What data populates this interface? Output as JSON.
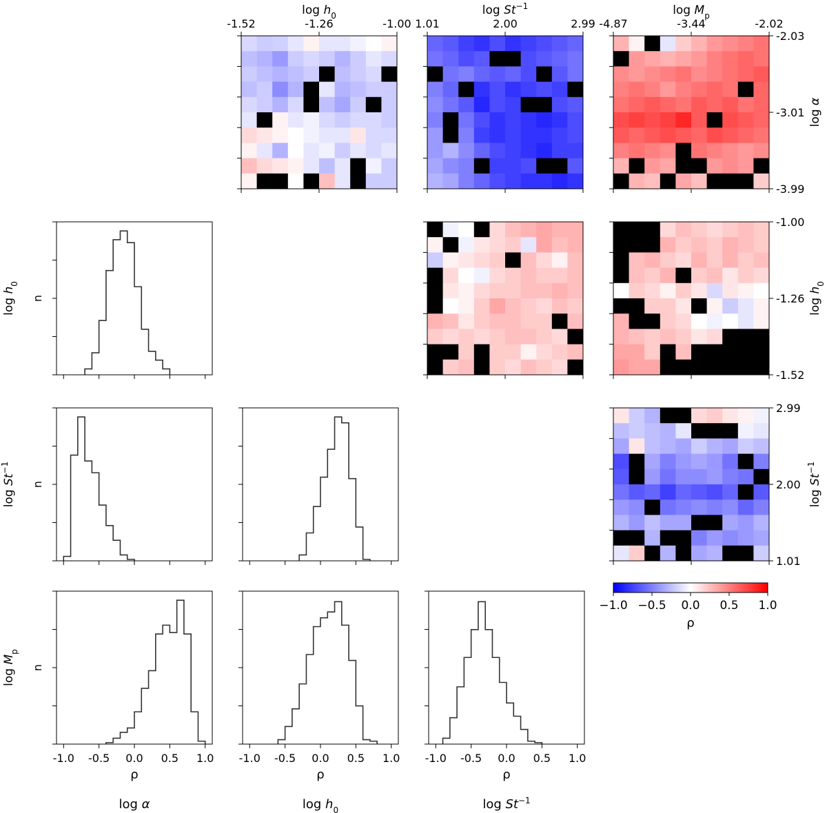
{
  "chart_data": {
    "type": "corner-plot",
    "description_labels": {
      "variables": [
        "log α",
        "log h0",
        "log St-1",
        "log Mp"
      ]
    },
    "heatmaps": [
      {
        "name": "h0-vs-alpha",
        "x_label": {
          "main": "log ",
          "ital": "h",
          "sub": "0",
          "sup": ""
        },
        "y_label": {
          "main": "log ",
          "ital": "α",
          "sub": "",
          "sup": ""
        },
        "x_ticks": [
          "-1.52",
          "-1.26",
          "-1.00"
        ],
        "y_ticks": [
          "-2.03",
          "-3.01",
          "-3.99"
        ],
        "grid": [
          [
            -0.15,
            -0.2,
            -0.18,
            -0.1,
            0.05,
            -0.1,
            -0.1,
            -0.05,
            0.0,
            0.05
          ],
          [
            -0.25,
            -0.3,
            -0.4,
            -0.2,
            -0.15,
            -0.2,
            -0.3,
            -0.2,
            -0.1,
            -0.15
          ],
          [
            -0.2,
            -0.25,
            -0.3,
            -0.25,
            -0.2,
            null,
            -0.25,
            -0.2,
            -0.15,
            null
          ],
          [
            -0.25,
            -0.2,
            -0.45,
            -0.3,
            null,
            -0.1,
            -0.3,
            -0.25,
            -0.2,
            -0.2
          ],
          [
            -0.15,
            -0.2,
            -0.3,
            -0.15,
            null,
            -0.25,
            -0.35,
            -0.2,
            null,
            -0.2
          ],
          [
            -0.1,
            null,
            0.05,
            -0.1,
            -0.05,
            -0.15,
            -0.2,
            -0.15,
            -0.15,
            -0.2
          ],
          [
            0.15,
            0.1,
            0.05,
            0.0,
            -0.05,
            -0.1,
            -0.1,
            0.1,
            -0.15,
            -0.15
          ],
          [
            0.05,
            -0.1,
            -0.3,
            0.0,
            -0.1,
            -0.05,
            -0.2,
            -0.1,
            -0.15,
            -0.1
          ],
          [
            0.25,
            0.15,
            0.1,
            0.05,
            -0.1,
            -0.25,
            -0.1,
            null,
            -0.05,
            -0.2
          ],
          [
            0.05,
            null,
            null,
            0.0,
            null,
            0.25,
            -0.1,
            null,
            -0.2,
            -0.2
          ]
        ]
      },
      {
        "name": "st-vs-alpha",
        "x_label": {
          "main": "log ",
          "ital": "St",
          "sub": "",
          "sup": "−1"
        },
        "y_label": {
          "main": "",
          "ital": "",
          "sub": "",
          "sup": ""
        },
        "x_ticks": [
          "1.01",
          "2.00",
          "2.99"
        ],
        "y_ticks": [],
        "grid": [
          [
            -0.6,
            -0.65,
            -0.75,
            -0.8,
            -0.7,
            -0.8,
            -0.75,
            -0.7,
            -0.65,
            -0.6
          ],
          [
            -0.55,
            -0.6,
            -0.7,
            -0.65,
            null,
            null,
            -0.7,
            -0.65,
            -0.6,
            -0.55
          ],
          [
            null,
            -0.55,
            -0.5,
            -0.6,
            -0.65,
            -0.6,
            -0.7,
            null,
            -0.65,
            -0.55
          ],
          [
            -0.5,
            -0.6,
            null,
            -0.8,
            -0.7,
            -0.8,
            -0.75,
            -0.7,
            -0.75,
            null
          ],
          [
            -0.45,
            -0.55,
            -0.65,
            -0.85,
            -0.7,
            -0.75,
            null,
            null,
            -0.7,
            -0.65
          ],
          [
            -0.5,
            null,
            -0.55,
            -0.7,
            -0.8,
            -0.75,
            -0.8,
            -0.85,
            -0.8,
            -0.7
          ],
          [
            -0.4,
            null,
            -0.5,
            -0.75,
            -0.8,
            -0.75,
            -0.8,
            -0.8,
            -0.75,
            -0.7
          ],
          [
            -0.4,
            -0.3,
            -0.45,
            -0.6,
            -0.7,
            -0.75,
            -0.8,
            -0.85,
            -0.75,
            -0.75
          ],
          [
            -0.35,
            -0.45,
            -0.5,
            null,
            -0.75,
            -0.75,
            -0.7,
            null,
            null,
            -0.65
          ],
          [
            -0.3,
            -0.35,
            -0.5,
            -0.6,
            -0.7,
            -0.75,
            -0.8,
            -0.8,
            -0.85,
            -0.8
          ]
        ]
      },
      {
        "name": "mp-vs-alpha",
        "x_label": {
          "main": "log ",
          "ital": "M",
          "sub": "p",
          "sup": ""
        },
        "y_label": {
          "main": "log ",
          "ital": "α",
          "sub": "",
          "sup": ""
        },
        "x_ticks": [
          "-4.87",
          "-3.44",
          "-2.02"
        ],
        "y_ticks": [
          "-2.03",
          "-3.01",
          "-3.99"
        ],
        "grid": [
          [
            0.3,
            0.05,
            null,
            -0.1,
            0.2,
            0.3,
            0.4,
            0.45,
            0.5,
            0.55
          ],
          [
            null,
            0.4,
            0.35,
            0.3,
            0.35,
            0.4,
            0.5,
            0.55,
            0.6,
            0.55
          ],
          [
            0.45,
            0.4,
            0.45,
            0.5,
            0.55,
            0.45,
            0.5,
            0.55,
            0.6,
            0.65
          ],
          [
            0.5,
            0.55,
            0.5,
            0.4,
            0.5,
            0.55,
            0.6,
            0.55,
            null,
            0.6
          ],
          [
            0.55,
            0.6,
            0.65,
            0.6,
            0.55,
            0.65,
            0.6,
            0.65,
            0.55,
            0.6
          ],
          [
            0.7,
            0.75,
            0.7,
            0.75,
            0.85,
            0.65,
            null,
            0.7,
            0.65,
            0.6
          ],
          [
            0.65,
            0.6,
            0.65,
            0.7,
            0.65,
            0.6,
            0.7,
            0.65,
            0.6,
            0.55
          ],
          [
            0.5,
            0.55,
            0.5,
            0.45,
            null,
            0.55,
            0.5,
            0.45,
            0.4,
            0.45
          ],
          [
            0.3,
            null,
            0.4,
            0.35,
            null,
            null,
            0.4,
            0.45,
            0.4,
            null
          ],
          [
            null,
            0.3,
            0.25,
            null,
            0.35,
            0.25,
            null,
            null,
            null,
            0.2
          ]
        ]
      },
      {
        "name": "st-vs-h0",
        "x_label": {
          "main": "",
          "ital": "",
          "sub": "",
          "sup": ""
        },
        "y_label": {
          "main": "",
          "ital": "",
          "sub": "",
          "sup": ""
        },
        "x_ticks": [],
        "y_ticks": [],
        "grid": [
          [
            null,
            -0.05,
            0.0,
            null,
            0.15,
            0.25,
            0.3,
            0.35,
            0.3,
            0.3
          ],
          [
            0.05,
            null,
            -0.05,
            0.1,
            0.15,
            0.2,
            -0.1,
            0.35,
            0.25,
            0.3
          ],
          [
            -0.2,
            0.05,
            0.1,
            0.15,
            0.2,
            null,
            0.25,
            0.15,
            0.05,
            0.25
          ],
          [
            null,
            0.15,
            0.0,
            -0.05,
            0.15,
            0.2,
            0.25,
            0.2,
            0.2,
            0.25
          ],
          [
            null,
            0.1,
            0.05,
            0.15,
            0.2,
            0.2,
            0.25,
            0.25,
            0.3,
            0.25
          ],
          [
            null,
            0.0,
            0.05,
            0.2,
            0.35,
            0.25,
            0.2,
            0.15,
            0.25,
            0.2
          ],
          [
            0.3,
            0.25,
            0.1,
            0.2,
            0.25,
            0.25,
            0.2,
            0.2,
            null,
            0.25
          ],
          [
            0.2,
            0.15,
            0.2,
            0.15,
            0.2,
            0.25,
            0.25,
            0.2,
            0.15,
            null
          ],
          [
            null,
            null,
            0.2,
            null,
            0.2,
            0.2,
            0.05,
            0.15,
            0.2,
            0.25
          ],
          [
            null,
            0.2,
            0.25,
            null,
            0.2,
            0.15,
            0.25,
            0.2,
            0.15,
            null
          ]
        ]
      },
      {
        "name": "mp-vs-h0",
        "x_label": {
          "main": "",
          "ital": "",
          "sub": "",
          "sup": ""
        },
        "y_label": {
          "main": "log ",
          "ital": "h",
          "sub": "0",
          "sup": ""
        },
        "x_ticks": [],
        "y_ticks": [
          "-1.00",
          "-1.26",
          "-1.52"
        ],
        "grid": [
          [
            null,
            null,
            null,
            0.15,
            0.25,
            0.2,
            0.15,
            0.2,
            0.25,
            0.2
          ],
          [
            null,
            null,
            null,
            0.3,
            0.2,
            0.25,
            0.2,
            0.3,
            0.25,
            0.2
          ],
          [
            null,
            0.25,
            0.3,
            0.2,
            0.15,
            0.3,
            0.2,
            0.3,
            0.2,
            0.25
          ],
          [
            null,
            0.25,
            0.2,
            0.3,
            null,
            0.2,
            0.25,
            0.1,
            0.2,
            0.15
          ],
          [
            0.0,
            0.2,
            0.15,
            0.05,
            0.2,
            0.1,
            -0.15,
            0.1,
            0.05,
            0.0
          ],
          [
            null,
            null,
            0.2,
            0.2,
            0.1,
            null,
            0.05,
            -0.2,
            -0.1,
            0.05
          ],
          [
            0.3,
            null,
            null,
            0.2,
            0.15,
            0.0,
            -0.05,
            0.0,
            -0.1,
            0.05
          ],
          [
            0.3,
            0.25,
            0.2,
            0.25,
            0.2,
            0.1,
            0.15,
            null,
            null,
            null
          ],
          [
            0.35,
            0.35,
            0.2,
            null,
            0.25,
            null,
            null,
            null,
            null,
            null
          ],
          [
            0.4,
            0.35,
            0.35,
            null,
            null,
            null,
            null,
            null,
            null,
            null
          ]
        ]
      },
      {
        "name": "mp-vs-st",
        "x_label": {
          "main": "",
          "ital": "",
          "sub": "",
          "sup": ""
        },
        "y_label": {
          "main": "log ",
          "ital": "St",
          "sub": "",
          "sup": "−1"
        },
        "x_ticks": [],
        "y_ticks": [
          "2.99",
          "2.00",
          "1.01"
        ],
        "grid": [
          [
            0.1,
            -0.2,
            -0.3,
            null,
            null,
            0.15,
            0.2,
            0.1,
            0.05,
            -0.05
          ],
          [
            -0.25,
            -0.2,
            -0.25,
            -0.3,
            -0.1,
            null,
            null,
            null,
            -0.05,
            -0.1
          ],
          [
            -0.35,
            0.1,
            -0.25,
            -0.3,
            -0.35,
            -0.2,
            -0.3,
            -0.35,
            -0.2,
            -0.25
          ],
          [
            -0.7,
            null,
            -0.35,
            -0.5,
            -0.4,
            -0.35,
            -0.4,
            -0.55,
            null,
            -0.5
          ],
          [
            -0.65,
            null,
            -0.4,
            -0.55,
            -0.45,
            -0.45,
            -0.4,
            -0.5,
            -0.55,
            null
          ],
          [
            -0.55,
            -0.65,
            -0.6,
            -0.75,
            -0.6,
            -0.65,
            -0.7,
            -0.6,
            null,
            -0.65
          ],
          [
            -0.4,
            -0.45,
            null,
            -0.55,
            -0.5,
            -0.45,
            -0.5,
            -0.45,
            -0.6,
            -0.5
          ],
          [
            -0.3,
            -0.4,
            -0.25,
            -0.35,
            -0.35,
            null,
            null,
            -0.35,
            -0.4,
            -0.3
          ],
          [
            null,
            null,
            -0.3,
            null,
            null,
            -0.5,
            -0.4,
            -0.45,
            -0.4,
            -0.35
          ],
          [
            -0.1,
            0.2,
            null,
            -0.3,
            null,
            -0.35,
            -0.3,
            null,
            null,
            -0.2
          ]
        ]
      }
    ],
    "histograms": [
      {
        "name": "hist-alpha-h0",
        "y_label": {
          "main": "log ",
          "ital": "h",
          "sub": "0",
          "sup": ""
        },
        "x_tick_labels": false,
        "bin_edges": [
          -0.7,
          -0.6,
          -0.5,
          -0.4,
          -0.3,
          -0.2,
          -0.1,
          0.0,
          0.1,
          0.2,
          0.3,
          0.4,
          0.5
        ],
        "counts": [
          0.04,
          0.15,
          0.37,
          0.71,
          0.92,
          0.98,
          0.9,
          0.6,
          0.31,
          0.16,
          0.1,
          0.04
        ]
      },
      {
        "name": "hist-alpha-st",
        "y_label": {
          "main": "log ",
          "ital": "St",
          "sub": "",
          "sup": "−1"
        },
        "x_tick_labels": false,
        "bin_edges": [
          -1.0,
          -0.9,
          -0.8,
          -0.7,
          -0.6,
          -0.5,
          -0.4,
          -0.3,
          -0.2,
          -0.1,
          0.0
        ],
        "counts": [
          0.03,
          0.72,
          0.98,
          0.68,
          0.6,
          0.38,
          0.24,
          0.14,
          0.04,
          0.01
        ]
      },
      {
        "name": "hist-h0-st",
        "y_label": {
          "main": "",
          "ital": "",
          "sub": "",
          "sup": ""
        },
        "x_tick_labels": false,
        "bin_edges": [
          -0.3,
          -0.2,
          -0.1,
          0.0,
          0.1,
          0.2,
          0.3,
          0.4,
          0.5,
          0.6,
          0.7
        ],
        "counts": [
          0.04,
          0.19,
          0.37,
          0.57,
          0.76,
          0.98,
          0.94,
          0.56,
          0.23,
          0.01
        ]
      },
      {
        "name": "hist-alpha-mp",
        "y_label": {
          "main": "log ",
          "ital": "M",
          "sub": "p",
          "sup": ""
        },
        "x_tick_labels": true,
        "bin_edges": [
          -0.4,
          -0.3,
          -0.2,
          -0.1,
          0.0,
          0.1,
          0.2,
          0.3,
          0.4,
          0.5,
          0.6,
          0.7,
          0.8,
          0.9,
          1.0
        ],
        "counts": [
          0.01,
          0.04,
          0.08,
          0.11,
          0.22,
          0.38,
          0.5,
          0.75,
          0.81,
          0.76,
          0.98,
          0.75,
          0.22,
          0.02
        ]
      },
      {
        "name": "hist-h0-mp",
        "y_label": {
          "main": "",
          "ital": "",
          "sub": "",
          "sup": ""
        },
        "x_tick_labels": true,
        "bin_edges": [
          -0.6,
          -0.5,
          -0.4,
          -0.3,
          -0.2,
          -0.1,
          0.0,
          0.1,
          0.2,
          0.3,
          0.4,
          0.5,
          0.6,
          0.7,
          0.8
        ],
        "counts": [
          0.03,
          0.12,
          0.24,
          0.41,
          0.61,
          0.8,
          0.86,
          0.9,
          0.97,
          0.81,
          0.57,
          0.26,
          0.03,
          0.02
        ]
      },
      {
        "name": "hist-st-mp",
        "y_label": {
          "main": "",
          "ital": "",
          "sub": "",
          "sup": ""
        },
        "x_tick_labels": true,
        "bin_edges": [
          -0.9,
          -0.8,
          -0.7,
          -0.6,
          -0.5,
          -0.4,
          -0.3,
          -0.2,
          -0.1,
          0.0,
          0.1,
          0.2,
          0.3,
          0.4,
          0.5
        ],
        "counts": [
          0.04,
          0.18,
          0.39,
          0.59,
          0.78,
          0.97,
          0.78,
          0.59,
          0.42,
          0.28,
          0.19,
          0.1,
          0.02,
          0.01
        ]
      }
    ],
    "hist_x_ticks": [
      "-1.0",
      "-0.5",
      "0.0",
      "0.5",
      "1.0"
    ],
    "hist_x_label": "ρ",
    "hist_y_label": "n",
    "bottom_labels": [
      {
        "main": "log ",
        "ital": "α",
        "sub": "",
        "sup": ""
      },
      {
        "main": "log ",
        "ital": "h",
        "sub": "0",
        "sup": ""
      },
      {
        "main": "log ",
        "ital": "St",
        "sub": "",
        "sup": "−1"
      }
    ],
    "colorbar": {
      "min": -1.0,
      "max": 1.0,
      "ticks": [
        "−1.0",
        "−0.5",
        "0.0",
        "0.5",
        "1.0"
      ],
      "label": "ρ",
      "colors": {
        "negative": "#0000ff",
        "zero": "#ffffff",
        "positive": "#ff0000",
        "masked": "#000000"
      }
    }
  }
}
